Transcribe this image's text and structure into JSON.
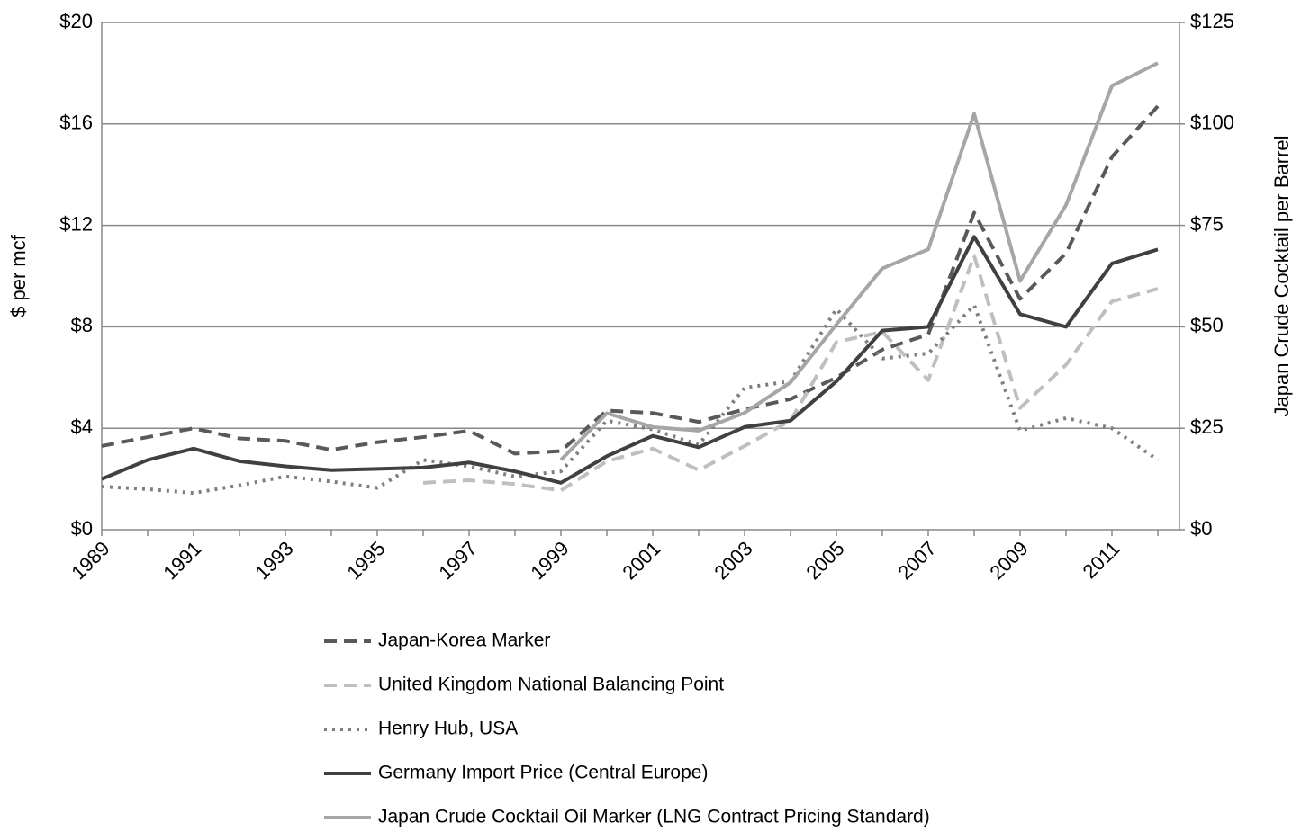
{
  "chart_data": {
    "type": "line",
    "categories": [
      "1989",
      null,
      "1991",
      null,
      "1993",
      null,
      "1995",
      null,
      "1997",
      null,
      "1999",
      null,
      "2001",
      null,
      "2003",
      null,
      "2005",
      null,
      "2007",
      null,
      "2009",
      null,
      "2011",
      null
    ],
    "ylabel": "$ per mcf",
    "y2label": "Japan Crude Cocktail per Barrel",
    "ylim": [
      0,
      20
    ],
    "yticks": [
      {
        "value": 0,
        "label": "$0"
      },
      {
        "value": 4,
        "label": "$4"
      },
      {
        "value": 8,
        "label": "$8"
      },
      {
        "value": 12,
        "label": "$12"
      },
      {
        "value": 16,
        "label": "$16"
      },
      {
        "value": 20,
        "label": "$20"
      }
    ],
    "y2lim": [
      0,
      125
    ],
    "y2ticks": [
      {
        "value": 0,
        "label": "$0"
      },
      {
        "value": 25,
        "label": "$25"
      },
      {
        "value": 50,
        "label": "$50"
      },
      {
        "value": 75,
        "label": "$75"
      },
      {
        "value": 100,
        "label": "$100"
      },
      {
        "value": 125,
        "label": "$125"
      }
    ],
    "grid": true,
    "legend": "bottom",
    "series": [
      {
        "name": "Japan-Korea Marker",
        "color": "#595959",
        "style": "dash",
        "values": [
          3.3,
          3.65,
          4.0,
          3.6,
          3.5,
          3.15,
          3.45,
          3.65,
          3.9,
          3.0,
          3.1,
          4.7,
          4.6,
          4.25,
          4.75,
          5.15,
          6.0,
          7.1,
          7.7,
          12.5,
          9.1,
          10.9,
          14.7,
          16.7
        ]
      },
      {
        "name": "United Kingdom National Balancing Point",
        "color": "#bfbfbf",
        "style": "dash",
        "values": [
          null,
          null,
          null,
          null,
          null,
          null,
          null,
          1.85,
          1.95,
          1.8,
          1.55,
          2.7,
          3.2,
          2.35,
          3.3,
          4.3,
          7.4,
          7.8,
          5.9,
          10.8,
          4.8,
          6.5,
          9.0,
          9.5
        ]
      },
      {
        "name": "Henry Hub, USA",
        "color": "#7f7f7f",
        "style": "dot",
        "values": [
          1.7,
          1.6,
          1.45,
          1.75,
          2.1,
          1.9,
          1.65,
          2.75,
          2.5,
          2.1,
          2.3,
          4.3,
          3.95,
          3.35,
          5.6,
          5.85,
          8.7,
          6.75,
          6.95,
          8.85,
          3.9,
          4.4,
          4.0,
          2.75
        ]
      },
      {
        "name": "Germany Import Price (Central Europe)",
        "color": "#404040",
        "style": "solid",
        "values": [
          2.0,
          2.75,
          3.2,
          2.7,
          2.5,
          2.35,
          2.4,
          2.45,
          2.65,
          2.3,
          1.85,
          2.9,
          3.7,
          3.25,
          4.05,
          4.3,
          5.85,
          7.85,
          8.0,
          11.55,
          8.5,
          8.0,
          10.5,
          11.05
        ]
      },
      {
        "name": "Japan Crude Cocktail Oil Marker (LNG Contract Pricing Standard)",
        "color": "#a6a6a6",
        "style": "solid",
        "axis": "y2",
        "values": [
          null,
          null,
          null,
          null,
          null,
          null,
          null,
          null,
          null,
          null,
          17.2,
          28.7,
          25.3,
          24.4,
          28.8,
          36.3,
          50.6,
          64.4,
          69.1,
          102.5,
          61.3,
          80.0,
          109.4,
          115.0
        ]
      }
    ]
  }
}
